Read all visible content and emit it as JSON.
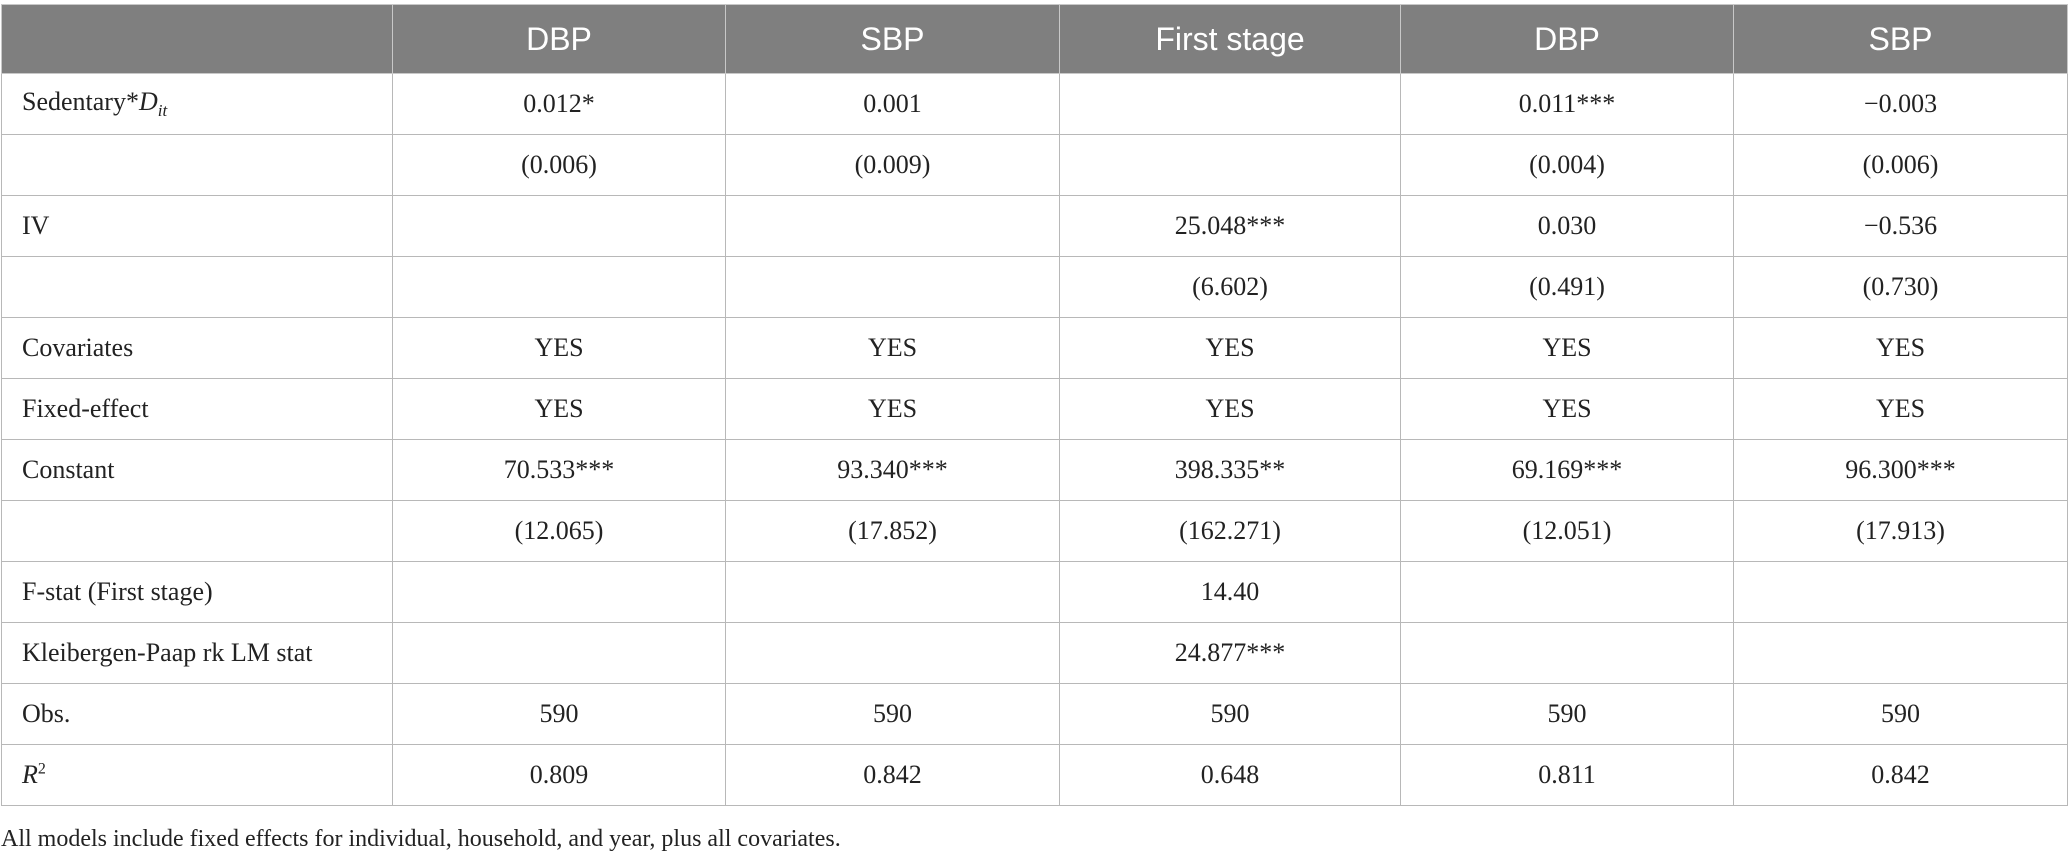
{
  "table": {
    "headers": [
      "",
      "DBP",
      "SBP",
      "First stage",
      "DBP",
      "SBP"
    ],
    "rows": [
      {
        "label": "Sedentary*",
        "label_italic": "D",
        "label_sub": "it",
        "cells": [
          "0.012*",
          "0.001",
          "",
          "0.011***",
          "−0.003"
        ]
      },
      {
        "label": "",
        "cells": [
          "(0.006)",
          "(0.009)",
          "",
          "(0.004)",
          "(0.006)"
        ]
      },
      {
        "label": "IV",
        "cells": [
          "",
          "",
          "25.048***",
          "0.030",
          "−0.536"
        ]
      },
      {
        "label": "",
        "cells": [
          "",
          "",
          "(6.602)",
          "(0.491)",
          "(0.730)"
        ]
      },
      {
        "label": "Covariates",
        "cells": [
          "YES",
          "YES",
          "YES",
          "YES",
          "YES"
        ]
      },
      {
        "label": "Fixed-effect",
        "cells": [
          "YES",
          "YES",
          "YES",
          "YES",
          "YES"
        ]
      },
      {
        "label": "Constant",
        "cells": [
          "70.533***",
          "93.340***",
          "398.335**",
          "69.169***",
          "96.300***"
        ]
      },
      {
        "label": "",
        "cells": [
          "(12.065)",
          "(17.852)",
          "(162.271)",
          "(12.051)",
          "(17.913)"
        ]
      },
      {
        "label": "F-stat (First stage)",
        "cells": [
          "",
          "",
          "14.40",
          "",
          ""
        ]
      },
      {
        "label": "Kleibergen-Paap rk LM stat",
        "cells": [
          "",
          "",
          "24.877***",
          "",
          ""
        ]
      },
      {
        "label": "Obs.",
        "cells": [
          "590",
          "590",
          "590",
          "590",
          "590"
        ]
      },
      {
        "label_italic": "R",
        "label_sup": "2",
        "cells": [
          "0.809",
          "0.842",
          "0.648",
          "0.811",
          "0.842"
        ]
      }
    ]
  },
  "footnote": "All models include fixed effects for individual, household, and year, plus all covariates."
}
